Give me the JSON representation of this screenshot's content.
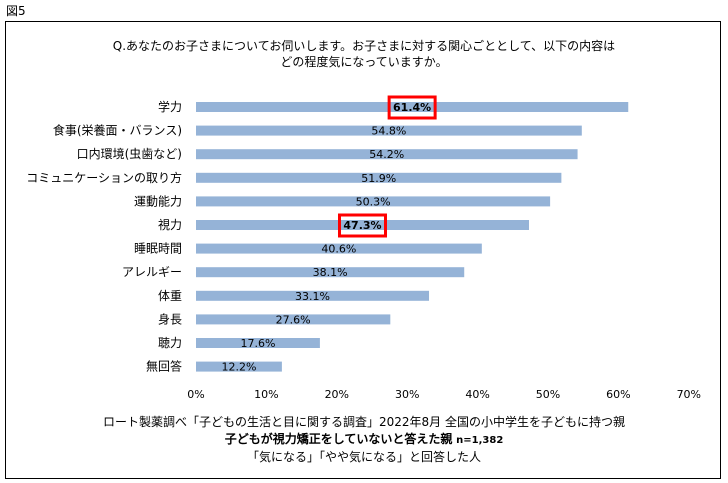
{
  "figure_label": "図5",
  "question": {
    "line1": "Q.あなたのお子さまについてお伺いします。お子さまに対する関心ごととして、以下の内容は",
    "line2": "どの程度気になっていますか。"
  },
  "chart_data": {
    "type": "bar",
    "orientation": "horizontal",
    "categories": [
      "学力",
      "食事(栄養面・バランス)",
      "口内環境(虫歯など)",
      "コミュニケーションの取り方",
      "運動能力",
      "視力",
      "睡眠時間",
      "アレルギー",
      "体重",
      "身長",
      "聴力",
      "無回答"
    ],
    "values": [
      61.4,
      54.8,
      54.2,
      51.9,
      50.3,
      47.3,
      40.6,
      38.1,
      33.1,
      27.6,
      17.6,
      12.2
    ],
    "value_labels": [
      "61.4%",
      "54.8%",
      "54.2%",
      "51.9%",
      "50.3%",
      "47.3%",
      "40.6%",
      "38.1%",
      "33.1%",
      "27.6%",
      "17.6%",
      "12.2%"
    ],
    "highlighted": [
      "学力",
      "視力"
    ],
    "xlim": [
      0,
      70
    ],
    "xticks": [
      "0%",
      "10%",
      "20%",
      "30%",
      "40%",
      "50%",
      "60%",
      "70%"
    ],
    "bar_color": "#95b3d7",
    "highlight_color": "#ff0000",
    "grid": false
  },
  "footer": {
    "line1": "ロート製薬調べ「子どもの生活と目に関する調査」2022年8月 全国の小中学生を子どもに持つ親",
    "line2_main": "子どもが視力矯正をしていないと答えた親",
    "line2_n": "n=1,382",
    "line3": "「気になる」「やや気になる」と回答した人"
  }
}
